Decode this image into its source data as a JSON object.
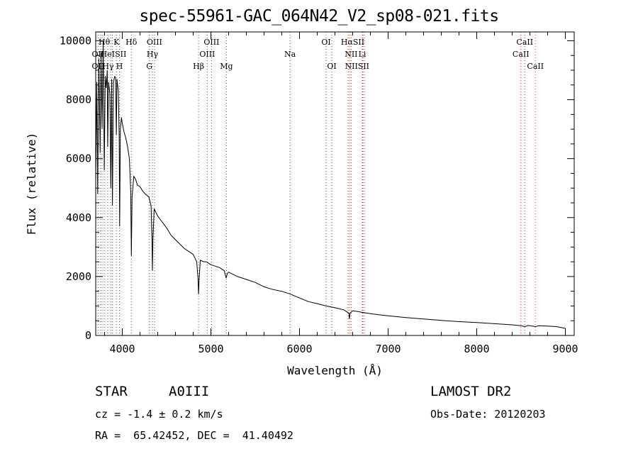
{
  "chart_data": {
    "type": "line",
    "title": "spec-55961-GAC_064N42_V2_sp08-021.fits",
    "xlabel": "Wavelength (Å)",
    "ylabel": "Flux (relative)",
    "xlim": [
      3700,
      9100
    ],
    "ylim": [
      0,
      10300
    ],
    "x_ticks": [
      4000,
      5000,
      6000,
      7000,
      8000,
      9000
    ],
    "y_ticks": [
      0,
      2000,
      4000,
      6000,
      8000,
      10000
    ],
    "grid": false,
    "series": [
      {
        "values": [
          [
            3700,
            5200
          ],
          [
            3712,
            8600
          ],
          [
            3722,
            4800
          ],
          [
            3735,
            9400
          ],
          [
            3750,
            6200
          ],
          [
            3760,
            9600
          ],
          [
            3772,
            7000
          ],
          [
            3785,
            10000
          ],
          [
            3797,
            5600
          ],
          [
            3808,
            8800
          ],
          [
            3818,
            8400
          ],
          [
            3830,
            9000
          ],
          [
            3835,
            6400
          ],
          [
            3845,
            8600
          ],
          [
            3860,
            8200
          ],
          [
            3870,
            5000
          ],
          [
            3880,
            8700
          ],
          [
            3889,
            4400
          ],
          [
            3900,
            8600
          ],
          [
            3915,
            8800
          ],
          [
            3925,
            8700
          ],
          [
            3933,
            6800
          ],
          [
            3940,
            8700
          ],
          [
            3955,
            8300
          ],
          [
            3965,
            6800
          ],
          [
            3970,
            3700
          ],
          [
            3978,
            7000
          ],
          [
            3990,
            7400
          ],
          [
            4000,
            7200
          ],
          [
            4020,
            6900
          ],
          [
            4040,
            6700
          ],
          [
            4060,
            6400
          ],
          [
            4080,
            6000
          ],
          [
            4095,
            4900
          ],
          [
            4102,
            2700
          ],
          [
            4110,
            4700
          ],
          [
            4130,
            5400
          ],
          [
            4150,
            5300
          ],
          [
            4170,
            5100
          ],
          [
            4200,
            5050
          ],
          [
            4230,
            4900
          ],
          [
            4260,
            4800
          ],
          [
            4300,
            4700
          ],
          [
            4325,
            4400
          ],
          [
            4336,
            3200
          ],
          [
            4340,
            2200
          ],
          [
            4346,
            3300
          ],
          [
            4360,
            4300
          ],
          [
            4400,
            4050
          ],
          [
            4450,
            3850
          ],
          [
            4500,
            3650
          ],
          [
            4550,
            3400
          ],
          [
            4600,
            3250
          ],
          [
            4650,
            3100
          ],
          [
            4700,
            2950
          ],
          [
            4750,
            2850
          ],
          [
            4800,
            2750
          ],
          [
            4840,
            2500
          ],
          [
            4855,
            1900
          ],
          [
            4861,
            1400
          ],
          [
            4868,
            1950
          ],
          [
            4880,
            2550
          ],
          [
            4920,
            2500
          ],
          [
            4950,
            2500
          ],
          [
            5000,
            2400
          ],
          [
            5050,
            2350
          ],
          [
            5100,
            2300
          ],
          [
            5150,
            2200
          ],
          [
            5172,
            1950
          ],
          [
            5185,
            2100
          ],
          [
            5200,
            2150
          ],
          [
            5300,
            2000
          ],
          [
            5400,
            1900
          ],
          [
            5500,
            1800
          ],
          [
            5600,
            1650
          ],
          [
            5700,
            1560
          ],
          [
            5800,
            1500
          ],
          [
            5900,
            1400
          ],
          [
            6000,
            1270
          ],
          [
            6100,
            1150
          ],
          [
            6200,
            1080
          ],
          [
            6300,
            1000
          ],
          [
            6400,
            940
          ],
          [
            6500,
            870
          ],
          [
            6555,
            760
          ],
          [
            6563,
            570
          ],
          [
            6571,
            760
          ],
          [
            6600,
            840
          ],
          [
            6700,
            790
          ],
          [
            6800,
            740
          ],
          [
            6900,
            700
          ],
          [
            7000,
            670
          ],
          [
            7200,
            610
          ],
          [
            7400,
            560
          ],
          [
            7600,
            510
          ],
          [
            7800,
            470
          ],
          [
            8000,
            440
          ],
          [
            8200,
            400
          ],
          [
            8400,
            360
          ],
          [
            8498,
            330
          ],
          [
            8542,
            300
          ],
          [
            8580,
            340
          ],
          [
            8662,
            300
          ],
          [
            8700,
            330
          ],
          [
            8800,
            320
          ],
          [
            8900,
            300
          ],
          [
            8950,
            270
          ],
          [
            9000,
            240
          ]
        ]
      }
    ],
    "line_markers": [
      {
        "label": "Hθ",
        "x": 3797,
        "row": 1
      },
      {
        "label": "K",
        "x": 3934,
        "row": 1
      },
      {
        "label": "Hδ",
        "x": 4102,
        "row": 1
      },
      {
        "label": "OIII",
        "x": 4363,
        "row": 1
      },
      {
        "label": "OIII",
        "x": 5007,
        "row": 1
      },
      {
        "label": "OI",
        "x": 6300,
        "row": 1
      },
      {
        "label": "HαSII",
        "x": 6600,
        "row": 1
      },
      {
        "label": "CaII",
        "x": 8542,
        "row": 1
      },
      {
        "label": "OII",
        "x": 3727,
        "row": 2
      },
      {
        "label": "HeISII",
        "x": 3900,
        "row": 2
      },
      {
        "label": "Hγ",
        "x": 4340,
        "row": 2
      },
      {
        "label": "OIII",
        "x": 4959,
        "row": 2
      },
      {
        "label": "Na",
        "x": 5893,
        "row": 2
      },
      {
        "label": "NII",
        "x": 6583,
        "row": 2
      },
      {
        "label": "Li",
        "x": 6708,
        "row": 2
      },
      {
        "label": "CaII",
        "x": 8498,
        "row": 2
      },
      {
        "label": "OII",
        "x": 3727,
        "row": 3
      },
      {
        "label": "Hγ",
        "x": 3840,
        "row": 3
      },
      {
        "label": "H",
        "x": 3968,
        "row": 3
      },
      {
        "label": "G",
        "x": 4305,
        "row": 3
      },
      {
        "label": "Hβ",
        "x": 4861,
        "row": 3
      },
      {
        "label": "Mg",
        "x": 5175,
        "row": 3
      },
      {
        "label": "OI",
        "x": 6364,
        "row": 3
      },
      {
        "label": "NIISII",
        "x": 6650,
        "row": 3
      },
      {
        "label": "CaII",
        "x": 8662,
        "row": 3
      }
    ],
    "dotted_line_positions": [
      3727,
      3750,
      3771,
      3797,
      3835,
      3869,
      3889,
      3934,
      3968,
      4102,
      4305,
      4340,
      4363,
      4861,
      4959,
      5007,
      5175,
      5893,
      6300,
      6364,
      6548,
      6563,
      6583,
      6708,
      6716,
      6731,
      8498,
      8542,
      8662
    ]
  },
  "info": {
    "class_label": "STAR",
    "subclass": "A0III",
    "survey": "LAMOST DR2",
    "cz": "cz = -1.4 ± 0.2 km/s",
    "obs_date": "Obs-Date: 20120203",
    "coords": "RA =  65.42452, DEC =  41.40492"
  }
}
